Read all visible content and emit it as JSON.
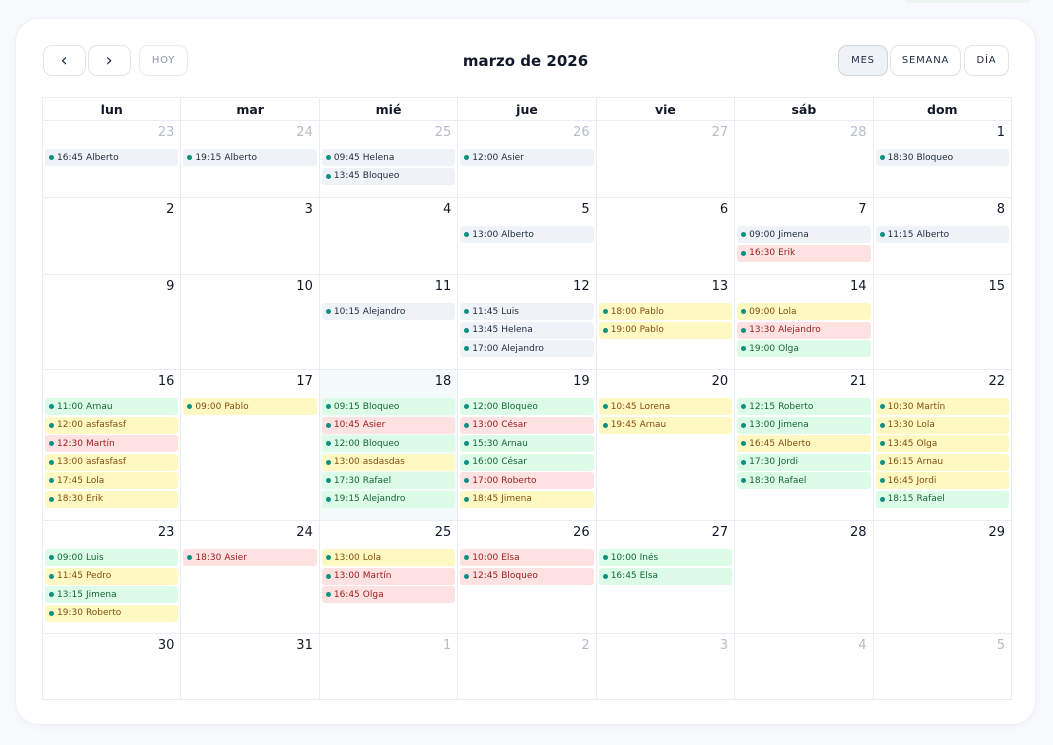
{
  "toolbar": {
    "prev_icon": "‹",
    "next_icon": "›",
    "today_label": "HOY",
    "title": "marzo de 2026",
    "views": [
      {
        "label": "MES",
        "active": true
      },
      {
        "label": "SEMANA",
        "active": false
      },
      {
        "label": "DÍA",
        "active": false
      }
    ]
  },
  "colors": {
    "gray": "#eff3f8",
    "green": "#dcfce7",
    "yellow": "#fef9c3",
    "red": "#fee2e2",
    "dot": "#0f8f80",
    "today_bg": "#f3faf9"
  },
  "weekdays": [
    "lun",
    "mar",
    "mié",
    "jue",
    "vie",
    "sáb",
    "dom"
  ],
  "weeks": [
    [
      {
        "day": "23",
        "muted": true,
        "events": [
          {
            "time": "16:45",
            "name": "Alberto",
            "status": "gray"
          }
        ]
      },
      {
        "day": "24",
        "muted": true,
        "events": [
          {
            "time": "19:15",
            "name": "Alberto",
            "status": "gray"
          }
        ]
      },
      {
        "day": "25",
        "muted": true,
        "events": [
          {
            "time": "09:45",
            "name": "Helena",
            "status": "gray"
          },
          {
            "time": "13:45",
            "name": "Bloqueo",
            "status": "gray"
          }
        ]
      },
      {
        "day": "26",
        "muted": true,
        "events": [
          {
            "time": "12:00",
            "name": "Asier",
            "status": "gray"
          }
        ]
      },
      {
        "day": "27",
        "muted": true,
        "events": []
      },
      {
        "day": "28",
        "muted": true,
        "events": []
      },
      {
        "day": "1",
        "events": [
          {
            "time": "18:30",
            "name": "Bloqueo",
            "status": "gray"
          }
        ]
      }
    ],
    [
      {
        "day": "2",
        "events": []
      },
      {
        "day": "3",
        "events": []
      },
      {
        "day": "4",
        "events": []
      },
      {
        "day": "5",
        "events": [
          {
            "time": "13:00",
            "name": "Alberto",
            "status": "gray"
          }
        ]
      },
      {
        "day": "6",
        "events": []
      },
      {
        "day": "7",
        "events": [
          {
            "time": "09:00",
            "name": "Jimena",
            "status": "gray"
          },
          {
            "time": "16:30",
            "name": "Erik",
            "status": "red"
          }
        ]
      },
      {
        "day": "8",
        "events": [
          {
            "time": "11:15",
            "name": "Alberto",
            "status": "gray"
          }
        ]
      }
    ],
    [
      {
        "day": "9",
        "events": []
      },
      {
        "day": "10",
        "events": []
      },
      {
        "day": "11",
        "events": [
          {
            "time": "10:15",
            "name": "Alejandro",
            "status": "gray"
          }
        ]
      },
      {
        "day": "12",
        "events": [
          {
            "time": "11:45",
            "name": "Luis",
            "status": "gray"
          },
          {
            "time": "13:45",
            "name": "Helena",
            "status": "gray"
          },
          {
            "time": "17:00",
            "name": "Alejandro",
            "status": "gray"
          }
        ]
      },
      {
        "day": "13",
        "events": [
          {
            "time": "18:00",
            "name": "Pablo",
            "status": "yellow"
          },
          {
            "time": "19:00",
            "name": "Pablo",
            "status": "yellow"
          }
        ]
      },
      {
        "day": "14",
        "events": [
          {
            "time": "09:00",
            "name": "Lola",
            "status": "yellow"
          },
          {
            "time": "13:30",
            "name": "Alejandro",
            "status": "red"
          },
          {
            "time": "19:00",
            "name": "Olga",
            "status": "green"
          }
        ]
      },
      {
        "day": "15",
        "events": []
      }
    ],
    [
      {
        "day": "16",
        "events": [
          {
            "time": "11:00",
            "name": "Arnau",
            "status": "green"
          },
          {
            "time": "12:00",
            "name": "asfasfasf",
            "status": "yellow"
          },
          {
            "time": "12:30",
            "name": "Martín",
            "status": "red"
          },
          {
            "time": "13:00",
            "name": "asfasfasf",
            "status": "yellow"
          },
          {
            "time": "17:45",
            "name": "Lola",
            "status": "yellow"
          },
          {
            "time": "18:30",
            "name": "Erik",
            "status": "yellow"
          }
        ]
      },
      {
        "day": "17",
        "events": [
          {
            "time": "09:00",
            "name": "Pablo",
            "status": "yellow"
          }
        ]
      },
      {
        "day": "18",
        "today": true,
        "events": [
          {
            "time": "09:15",
            "name": "Bloqueo",
            "status": "green"
          },
          {
            "time": "10:45",
            "name": "Asier",
            "status": "red"
          },
          {
            "time": "12:00",
            "name": "Bloqueo",
            "status": "green"
          },
          {
            "time": "13:00",
            "name": "asdasdas",
            "status": "yellow"
          },
          {
            "time": "17:30",
            "name": "Rafael",
            "status": "green"
          },
          {
            "time": "19:15",
            "name": "Alejandro",
            "status": "green"
          }
        ]
      },
      {
        "day": "19",
        "events": [
          {
            "time": "12:00",
            "name": "Bloqueo",
            "status": "green"
          },
          {
            "time": "13:00",
            "name": "César",
            "status": "red"
          },
          {
            "time": "15:30",
            "name": "Arnau",
            "status": "green"
          },
          {
            "time": "16:00",
            "name": "César",
            "status": "green"
          },
          {
            "time": "17:00",
            "name": "Roberto",
            "status": "red"
          },
          {
            "time": "18:45",
            "name": "Jimena",
            "status": "yellow"
          }
        ]
      },
      {
        "day": "20",
        "events": [
          {
            "time": "10:45",
            "name": "Lorena",
            "status": "yellow"
          },
          {
            "time": "19:45",
            "name": "Arnau",
            "status": "yellow"
          }
        ]
      },
      {
        "day": "21",
        "events": [
          {
            "time": "12:15",
            "name": "Roberto",
            "status": "green"
          },
          {
            "time": "13:00",
            "name": "Jimena",
            "status": "green"
          },
          {
            "time": "16:45",
            "name": "Alberto",
            "status": "yellow"
          },
          {
            "time": "17:30",
            "name": "Jordi",
            "status": "green"
          },
          {
            "time": "18:30",
            "name": "Rafael",
            "status": "green"
          }
        ]
      },
      {
        "day": "22",
        "events": [
          {
            "time": "10:30",
            "name": "Martín",
            "status": "yellow"
          },
          {
            "time": "13:30",
            "name": "Lola",
            "status": "yellow"
          },
          {
            "time": "13:45",
            "name": "Olga",
            "status": "yellow"
          },
          {
            "time": "16:15",
            "name": "Arnau",
            "status": "yellow"
          },
          {
            "time": "16:45",
            "name": "Jordi",
            "status": "yellow"
          },
          {
            "time": "18:15",
            "name": "Rafael",
            "status": "green"
          }
        ]
      }
    ],
    [
      {
        "day": "23",
        "events": [
          {
            "time": "09:00",
            "name": "Luis",
            "status": "green"
          },
          {
            "time": "11:45",
            "name": "Pedro",
            "status": "yellow"
          },
          {
            "time": "13:15",
            "name": "Jimena",
            "status": "green"
          },
          {
            "time": "19:30",
            "name": "Roberto",
            "status": "yellow"
          }
        ]
      },
      {
        "day": "24",
        "events": [
          {
            "time": "18:30",
            "name": "Asier",
            "status": "red"
          }
        ]
      },
      {
        "day": "25",
        "events": [
          {
            "time": "13:00",
            "name": "Lola",
            "status": "yellow"
          },
          {
            "time": "13:00",
            "name": "Martín",
            "status": "red"
          },
          {
            "time": "16:45",
            "name": "Olga",
            "status": "red"
          }
        ]
      },
      {
        "day": "26",
        "events": [
          {
            "time": "10:00",
            "name": "Elsa",
            "status": "red"
          },
          {
            "time": "12:45",
            "name": "Bloqueo",
            "status": "red"
          }
        ]
      },
      {
        "day": "27",
        "events": [
          {
            "time": "10:00",
            "name": "Inés",
            "status": "green"
          },
          {
            "time": "16:45",
            "name": "Elsa",
            "status": "green"
          }
        ]
      },
      {
        "day": "28",
        "events": []
      },
      {
        "day": "29",
        "events": []
      }
    ],
    [
      {
        "day": "30",
        "events": []
      },
      {
        "day": "31",
        "events": []
      },
      {
        "day": "1",
        "muted": true,
        "events": []
      },
      {
        "day": "2",
        "muted": true,
        "events": []
      },
      {
        "day": "3",
        "muted": true,
        "events": []
      },
      {
        "day": "4",
        "muted": true,
        "events": []
      },
      {
        "day": "5",
        "muted": true,
        "events": []
      }
    ]
  ]
}
